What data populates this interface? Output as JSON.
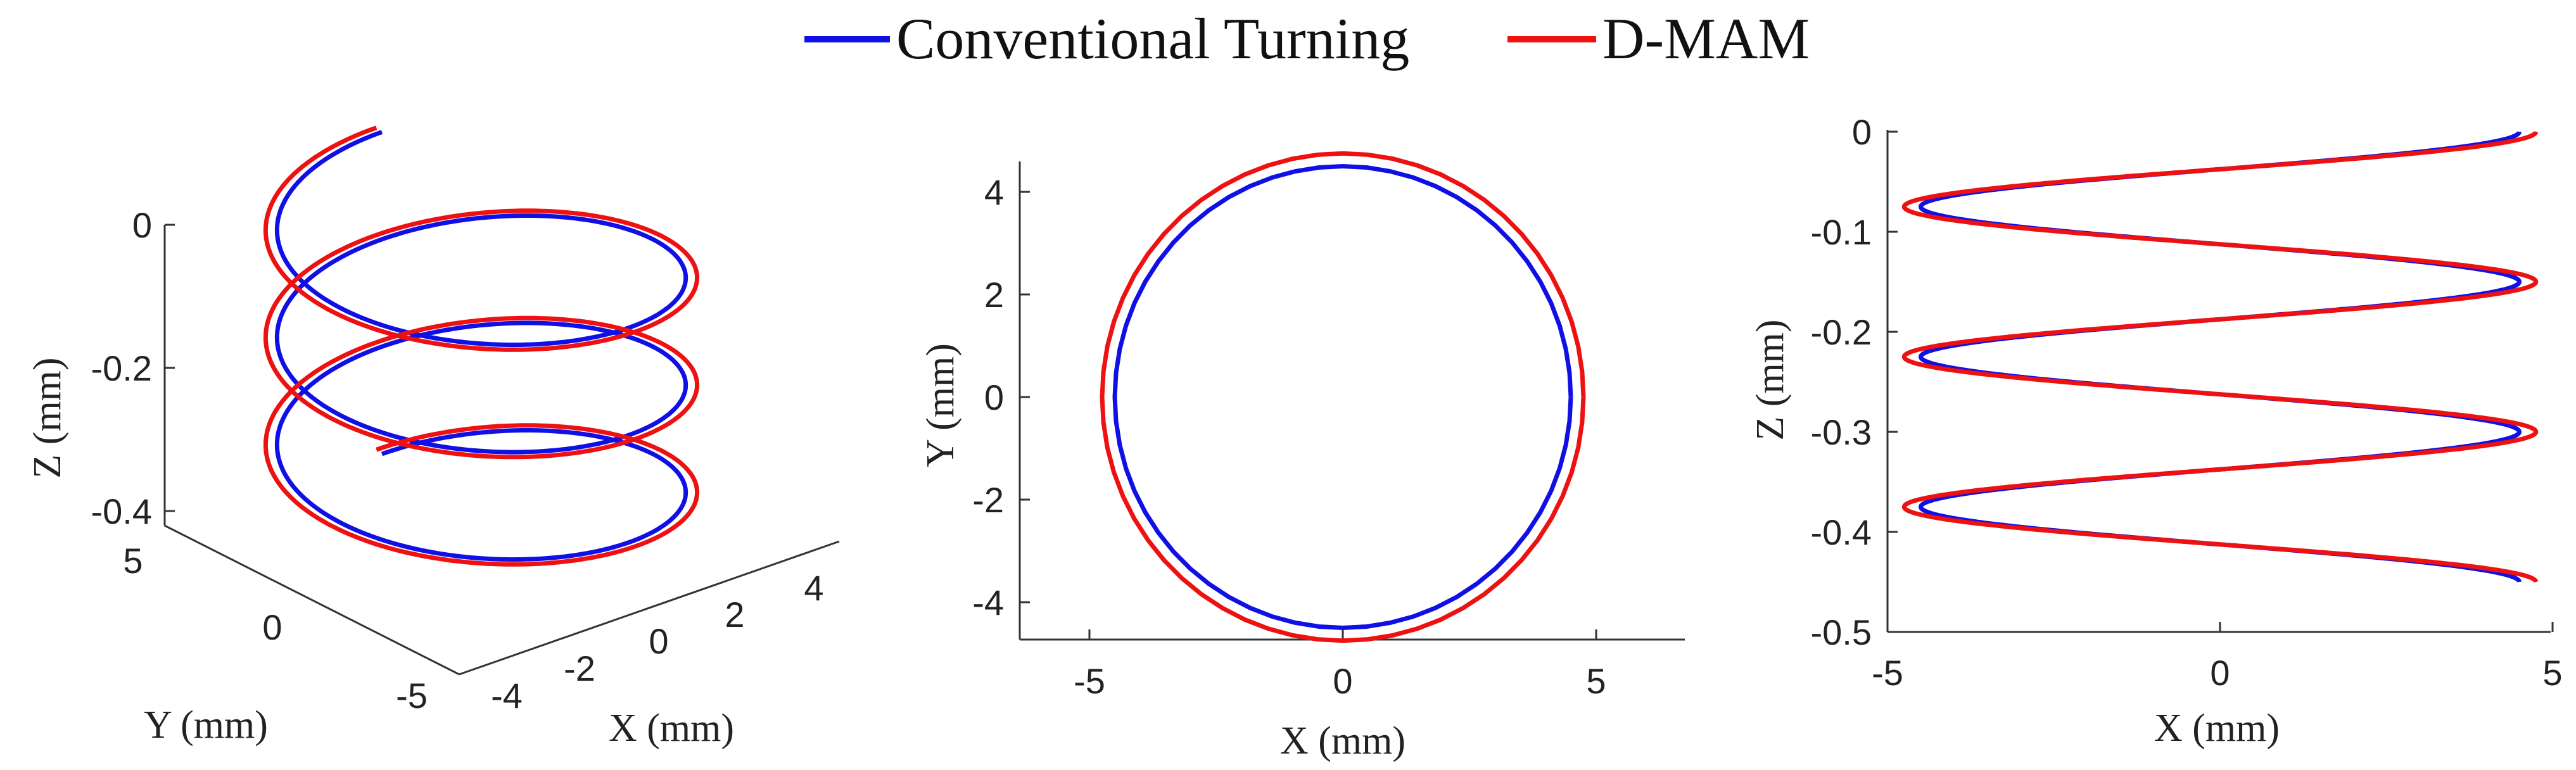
{
  "legend": [
    {
      "name": "Conventional Turning",
      "color": "#1010e6"
    },
    {
      "name": "D-MAM",
      "color": "#ee1111"
    }
  ],
  "chart_data": [
    {
      "type": "line",
      "view": "3d",
      "helix": {
        "turns": 3,
        "pitch_mm": 0.15,
        "z_range": [
          -0.45,
          0
        ]
      },
      "xlabel": "X (mm)",
      "ylabel": "Y (mm)",
      "zlabel": "Z (mm)",
      "xlim": [
        -5,
        5
      ],
      "ylim": [
        -5,
        5
      ],
      "zlim": [
        -0.45,
        0
      ],
      "xticks": [
        "-4",
        "-2",
        "0",
        "2",
        "4"
      ],
      "yticks": [
        "5",
        "0",
        "-5"
      ],
      "zticks": [
        "0",
        "-0.2",
        "-0.4"
      ],
      "series": [
        {
          "name": "Conventional Turning",
          "radius": 4.5
        },
        {
          "name": "D-MAM",
          "radius": 4.75
        }
      ]
    },
    {
      "type": "line",
      "view": "xy",
      "xlabel": "X (mm)",
      "ylabel": "Y (mm)",
      "xlim": [
        -6.5,
        6.8
      ],
      "ylim": [
        -4.8,
        4.8
      ],
      "xticks": [
        "-5",
        "0",
        "5"
      ],
      "yticks": [
        "4",
        "2",
        "0",
        "-2",
        "-4"
      ],
      "series": [
        {
          "name": "Conventional Turning",
          "radius": 4.5,
          "center": [
            0,
            0
          ]
        },
        {
          "name": "D-MAM",
          "radius": 4.75,
          "center": [
            0,
            0
          ]
        }
      ]
    },
    {
      "type": "line",
      "view": "xz",
      "xlabel": "X (mm)",
      "ylabel": "Z (mm)",
      "xlim": [
        -5,
        5
      ],
      "ylim": [
        -0.5,
        0
      ],
      "xticks": [
        "-5",
        "0",
        "5"
      ],
      "yticks": [
        "0",
        "-0.1",
        "-0.2",
        "-0.3",
        "-0.4",
        "-0.5"
      ],
      "series": [
        {
          "name": "Conventional Turning",
          "amplitude": 4.5,
          "z_start": 0,
          "z_end": -0.45,
          "period": 0.15
        },
        {
          "name": "D-MAM",
          "amplitude": 4.75,
          "z_start": 0,
          "z_end": -0.45,
          "period": 0.15
        }
      ]
    }
  ]
}
